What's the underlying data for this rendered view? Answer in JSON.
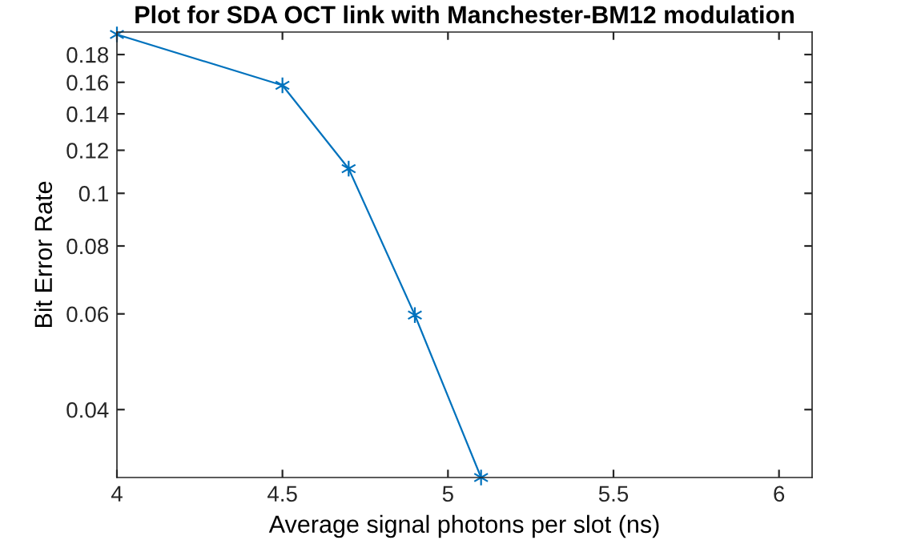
{
  "chart_data": {
    "type": "line",
    "title": "Plot for SDA OCT link with Manchester-BM12 modulation",
    "xlabel": "Average signal photons per slot (ns)",
    "ylabel": "Bit Error Rate",
    "x": [
      4,
      4.5,
      4.7,
      4.9,
      5.1
    ],
    "series": [
      {
        "color": "#0072bd",
        "values": [
          0.196,
          0.158,
          0.111,
          0.0597,
          0.03
        ]
      }
    ],
    "log": "y",
    "marker": "cross",
    "line_style": "solid",
    "grid": false,
    "xlim": [
      4,
      6.1
    ],
    "xticks": [
      4,
      4.5,
      5,
      5.5,
      6
    ],
    "ylim": [
      0.03,
      0.198
    ],
    "yticks": [
      0.04,
      0.06,
      0.08,
      0.1,
      0.12,
      0.14,
      0.16,
      0.18
    ]
  }
}
